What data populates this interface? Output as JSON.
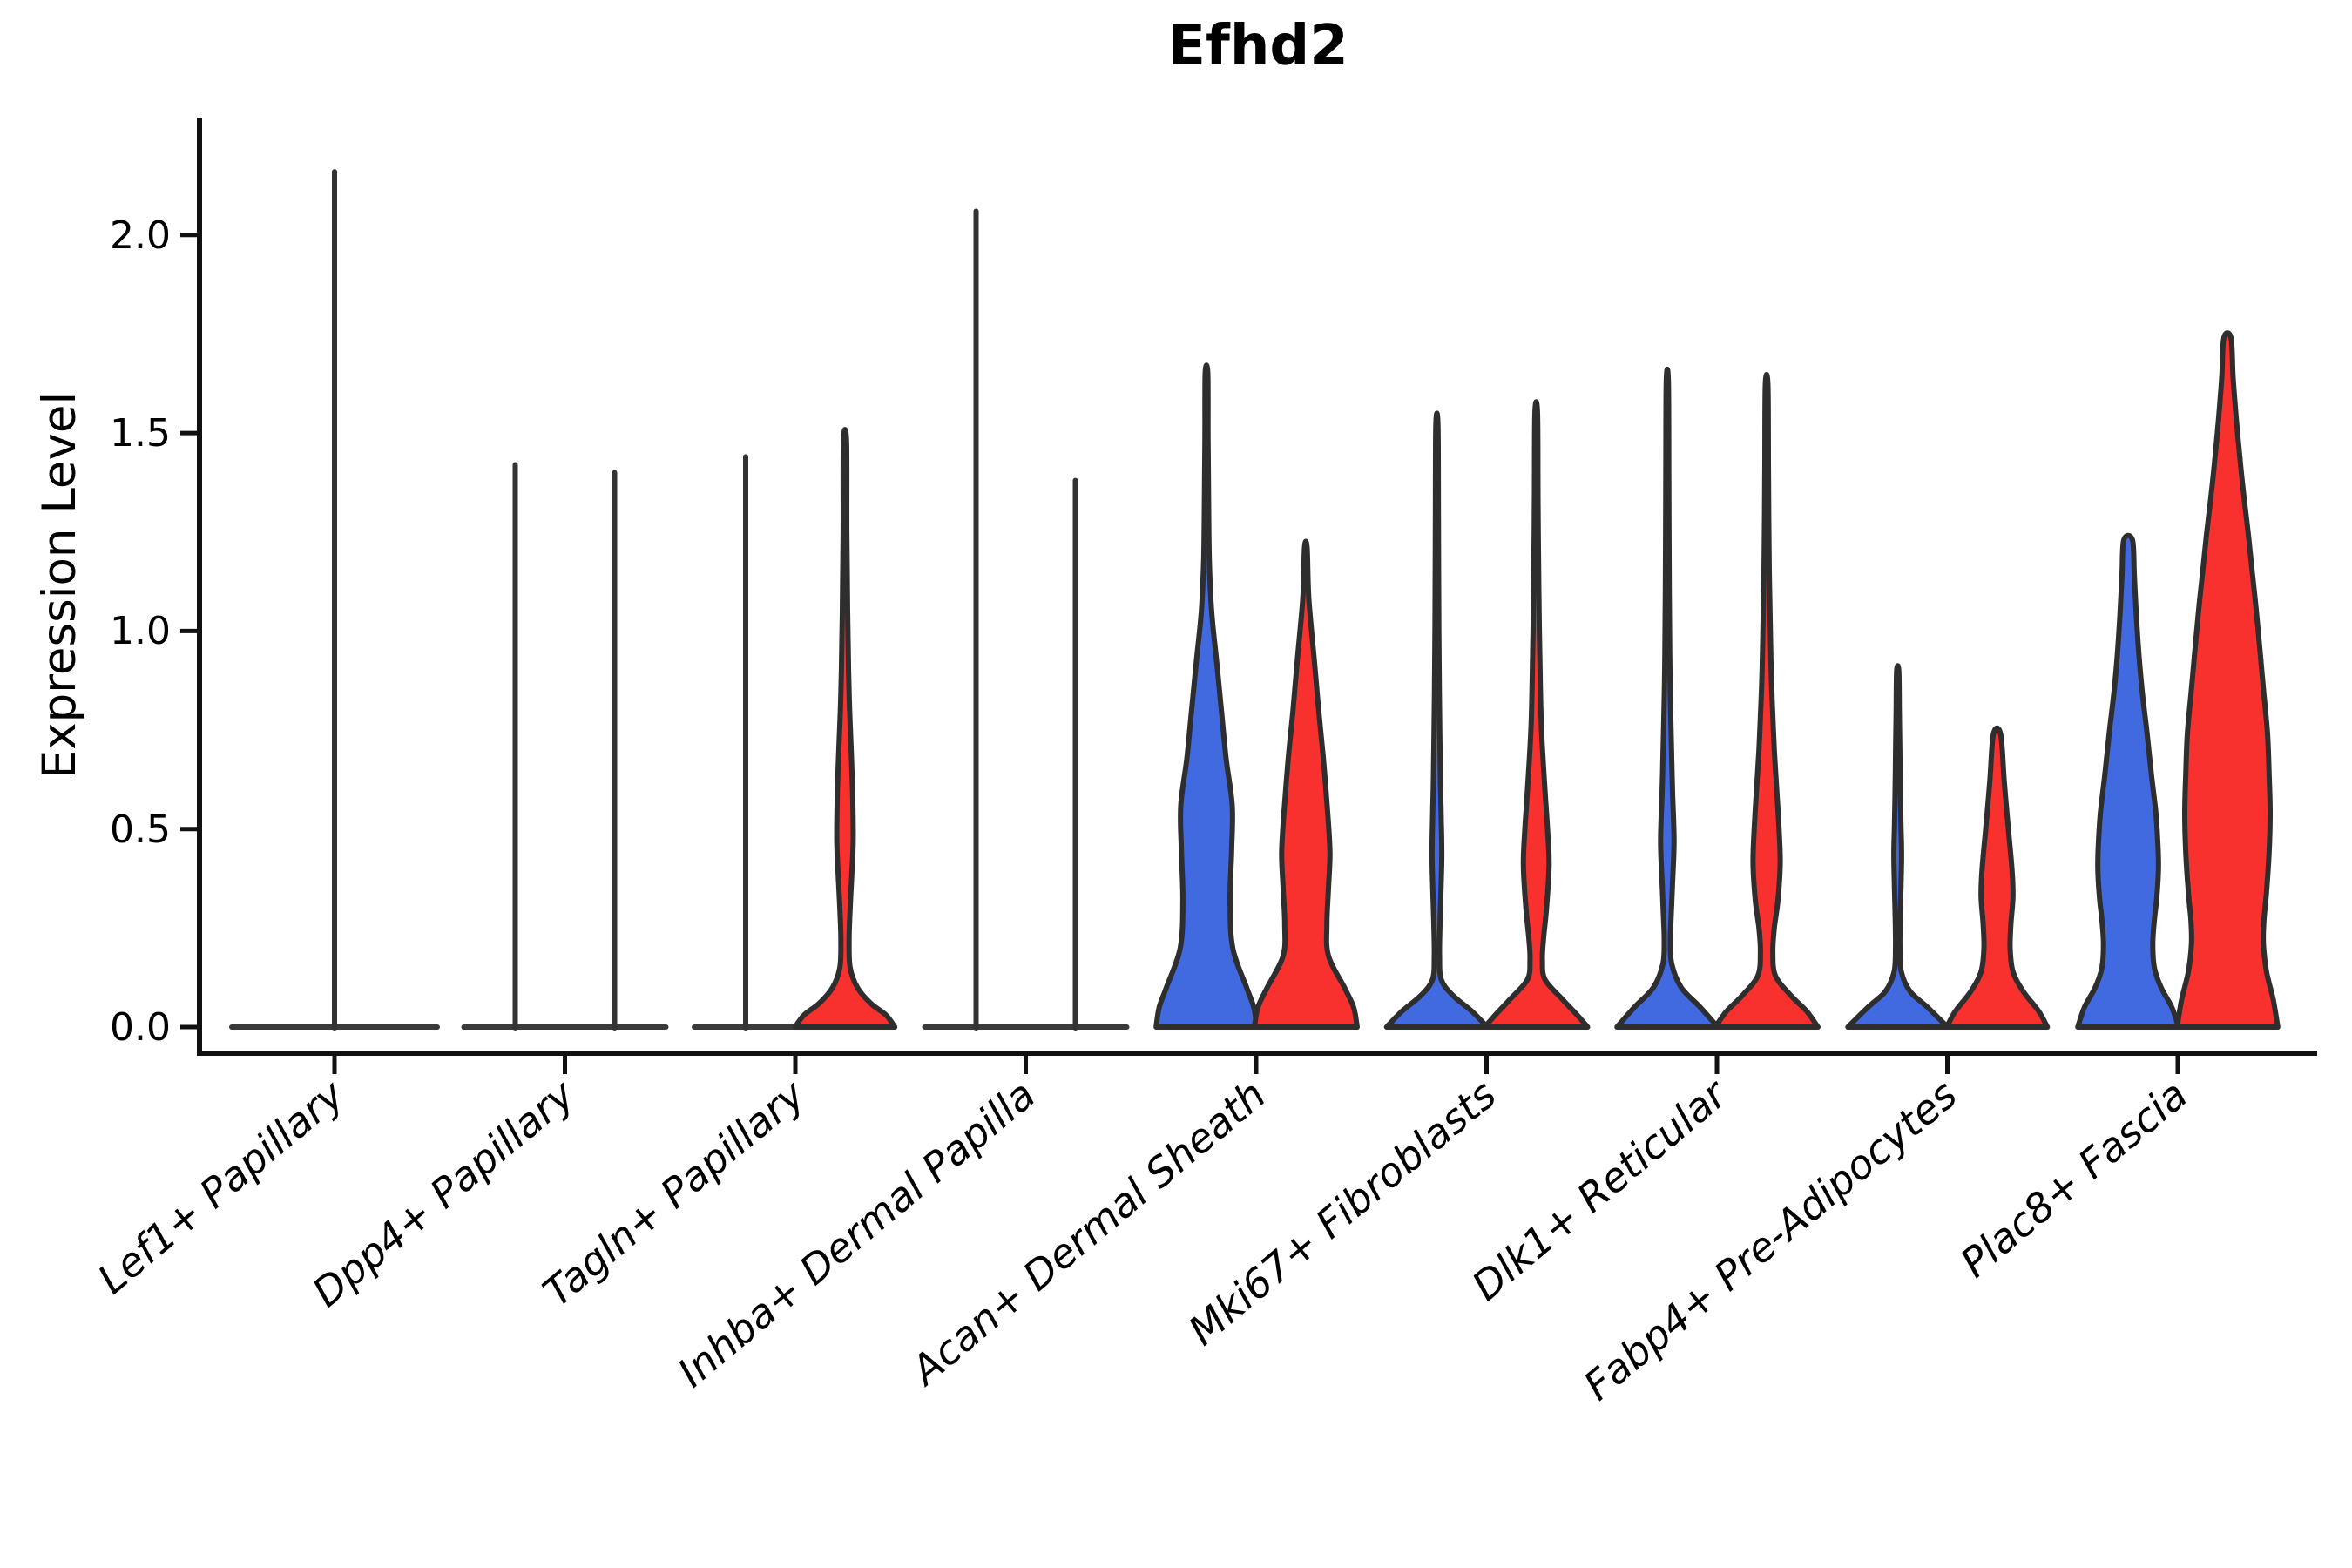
{
  "page": {
    "background": "#ffffff"
  },
  "chart_data": {
    "type": "violin",
    "title": "Efhd2",
    "ylabel": "Expression Level",
    "xlabel": "",
    "yticks": [
      "0.0",
      "0.5",
      "1.0",
      "1.5",
      "2.0"
    ],
    "ytick_values": [
      0.0,
      0.5,
      1.0,
      1.5,
      2.0
    ],
    "ylim": [
      -0.07,
      2.3
    ],
    "grid": false,
    "legend": "none",
    "colors": {
      "blue": "#4169e0",
      "red": "#f8312f",
      "outline": "#2e2e2e",
      "spike": "#333333",
      "axis": "#111111"
    },
    "categories": [
      "Lef1+ Papillary",
      "Dpp4+ Papillary",
      "Tagln+ Papillary",
      "Inhba+ Dermal Papilla",
      "Acan+ Dermal Sheath",
      "Mki67+ Fibroblasts",
      "Dlk1+ Reticular",
      "Fabp4+ Pre-Adipocytes",
      "Plac8+ Fascia"
    ],
    "category_slugs": [
      "lef1-papillary",
      "dpp4-papillary",
      "tagln-papillary",
      "inhba-dermal-papilla",
      "acan-dermal-sheath",
      "mki67-fibroblasts",
      "dlk1-reticular",
      "fabp4-pre-adipocytes",
      "plac8-fascia"
    ],
    "violins": [
      {
        "category": 0,
        "group": "single",
        "kind": "spike",
        "max": 2.16,
        "base_halfwidth_frac": 2.0
      },
      {
        "category": 1,
        "group": "blue",
        "kind": "spike",
        "max": 1.42,
        "base_halfwidth_frac": 1.0
      },
      {
        "category": 1,
        "group": "red",
        "kind": "spike",
        "max": 1.4,
        "base_halfwidth_frac": 1.0
      },
      {
        "category": 2,
        "group": "blue",
        "kind": "spike",
        "max": 1.44,
        "base_halfwidth_frac": 1.0
      },
      {
        "category": 2,
        "group": "red",
        "kind": "shaped",
        "max": 1.48,
        "profile": [
          [
            1.48,
            0.03
          ],
          [
            1.25,
            0.035
          ],
          [
            1.05,
            0.05
          ],
          [
            0.9,
            0.07
          ],
          [
            0.8,
            0.09
          ],
          [
            0.7,
            0.12
          ],
          [
            0.58,
            0.15
          ],
          [
            0.47,
            0.16
          ],
          [
            0.38,
            0.13
          ],
          [
            0.3,
            0.1
          ],
          [
            0.22,
            0.08
          ],
          [
            0.15,
            0.1
          ],
          [
            0.1,
            0.24
          ],
          [
            0.06,
            0.5
          ],
          [
            0.03,
            0.8
          ],
          [
            0.0,
            0.97
          ]
        ]
      },
      {
        "category": 3,
        "group": "blue",
        "kind": "spike",
        "max": 2.06,
        "base_halfwidth_frac": 1.0
      },
      {
        "category": 3,
        "group": "red",
        "kind": "spike",
        "max": 1.38,
        "base_halfwidth_frac": 1.0
      },
      {
        "category": 4,
        "group": "blue",
        "kind": "shaped",
        "max": 1.65,
        "profile": [
          [
            1.65,
            0.025
          ],
          [
            1.48,
            0.03
          ],
          [
            1.32,
            0.04
          ],
          [
            1.18,
            0.055
          ],
          [
            1.05,
            0.1
          ],
          [
            0.92,
            0.2
          ],
          [
            0.8,
            0.29
          ],
          [
            0.68,
            0.38
          ],
          [
            0.56,
            0.5
          ],
          [
            0.45,
            0.49
          ],
          [
            0.32,
            0.46
          ],
          [
            0.2,
            0.51
          ],
          [
            0.1,
            0.78
          ],
          [
            0.05,
            0.92
          ],
          [
            0.0,
            0.98
          ]
        ]
      },
      {
        "category": 4,
        "group": "red",
        "kind": "shaped",
        "max": 1.21,
        "profile": [
          [
            1.21,
            0.025
          ],
          [
            1.08,
            0.06
          ],
          [
            0.92,
            0.17
          ],
          [
            0.8,
            0.25
          ],
          [
            0.68,
            0.34
          ],
          [
            0.55,
            0.42
          ],
          [
            0.44,
            0.47
          ],
          [
            0.35,
            0.44
          ],
          [
            0.26,
            0.41
          ],
          [
            0.18,
            0.44
          ],
          [
            0.1,
            0.75
          ],
          [
            0.05,
            0.93
          ],
          [
            0.0,
            1.0
          ]
        ]
      },
      {
        "category": 5,
        "group": "blue",
        "kind": "shaped",
        "max": 1.52,
        "profile": [
          [
            1.52,
            0.02
          ],
          [
            1.28,
            0.028
          ],
          [
            1.0,
            0.038
          ],
          [
            0.8,
            0.05
          ],
          [
            0.61,
            0.07
          ],
          [
            0.52,
            0.085
          ],
          [
            0.43,
            0.095
          ],
          [
            0.34,
            0.078
          ],
          [
            0.26,
            0.06
          ],
          [
            0.18,
            0.05
          ],
          [
            0.12,
            0.085
          ],
          [
            0.08,
            0.31
          ],
          [
            0.04,
            0.68
          ],
          [
            0.0,
            0.98
          ]
        ]
      },
      {
        "category": 5,
        "group": "red",
        "kind": "shaped",
        "max": 1.55,
        "profile": [
          [
            1.55,
            0.025
          ],
          [
            1.32,
            0.035
          ],
          [
            1.1,
            0.05
          ],
          [
            0.94,
            0.07
          ],
          [
            0.76,
            0.1
          ],
          [
            0.6,
            0.17
          ],
          [
            0.5,
            0.22
          ],
          [
            0.41,
            0.25
          ],
          [
            0.3,
            0.2
          ],
          [
            0.22,
            0.14
          ],
          [
            0.17,
            0.12
          ],
          [
            0.12,
            0.17
          ],
          [
            0.07,
            0.51
          ],
          [
            0.03,
            0.8
          ],
          [
            0.0,
            1.0
          ]
        ]
      },
      {
        "category": 6,
        "group": "blue",
        "kind": "shaped",
        "max": 1.63,
        "profile": [
          [
            1.63,
            0.02
          ],
          [
            1.38,
            0.028
          ],
          [
            1.1,
            0.038
          ],
          [
            0.9,
            0.05
          ],
          [
            0.72,
            0.078
          ],
          [
            0.6,
            0.1
          ],
          [
            0.47,
            0.13
          ],
          [
            0.36,
            0.1
          ],
          [
            0.29,
            0.078
          ],
          [
            0.22,
            0.06
          ],
          [
            0.16,
            0.085
          ],
          [
            0.1,
            0.27
          ],
          [
            0.05,
            0.64
          ],
          [
            0.0,
            0.98
          ]
        ]
      },
      {
        "category": 6,
        "group": "red",
        "kind": "shaped",
        "max": 1.62,
        "profile": [
          [
            1.62,
            0.025
          ],
          [
            1.4,
            0.035
          ],
          [
            1.15,
            0.05
          ],
          [
            0.95,
            0.08
          ],
          [
            0.85,
            0.1
          ],
          [
            0.7,
            0.15
          ],
          [
            0.55,
            0.22
          ],
          [
            0.42,
            0.265
          ],
          [
            0.32,
            0.22
          ],
          [
            0.25,
            0.15
          ],
          [
            0.19,
            0.12
          ],
          [
            0.13,
            0.17
          ],
          [
            0.08,
            0.47
          ],
          [
            0.04,
            0.78
          ],
          [
            0.0,
            1.0
          ]
        ]
      },
      {
        "category": 7,
        "group": "blue",
        "kind": "shaped",
        "max": 0.9,
        "profile": [
          [
            0.9,
            0.02
          ],
          [
            0.8,
            0.03
          ],
          [
            0.7,
            0.04
          ],
          [
            0.58,
            0.052
          ],
          [
            0.5,
            0.065
          ],
          [
            0.43,
            0.075
          ],
          [
            0.35,
            0.062
          ],
          [
            0.27,
            0.048
          ],
          [
            0.2,
            0.042
          ],
          [
            0.14,
            0.07
          ],
          [
            0.09,
            0.24
          ],
          [
            0.05,
            0.58
          ],
          [
            0.0,
            0.97
          ]
        ]
      },
      {
        "category": 7,
        "group": "red",
        "kind": "shaped",
        "max": 0.74,
        "profile": [
          [
            0.74,
            0.07
          ],
          [
            0.62,
            0.14
          ],
          [
            0.5,
            0.22
          ],
          [
            0.4,
            0.29
          ],
          [
            0.33,
            0.31
          ],
          [
            0.26,
            0.27
          ],
          [
            0.2,
            0.255
          ],
          [
            0.14,
            0.31
          ],
          [
            0.09,
            0.51
          ],
          [
            0.04,
            0.81
          ],
          [
            0.0,
            0.98
          ]
        ]
      },
      {
        "category": 8,
        "group": "blue",
        "kind": "shaped",
        "max": 1.23,
        "profile": [
          [
            1.23,
            0.085
          ],
          [
            1.14,
            0.12
          ],
          [
            1.04,
            0.16
          ],
          [
            0.94,
            0.21
          ],
          [
            0.84,
            0.28
          ],
          [
            0.74,
            0.37
          ],
          [
            0.64,
            0.45
          ],
          [
            0.54,
            0.54
          ],
          [
            0.46,
            0.58
          ],
          [
            0.4,
            0.59
          ],
          [
            0.33,
            0.56
          ],
          [
            0.27,
            0.51
          ],
          [
            0.21,
            0.48
          ],
          [
            0.15,
            0.51
          ],
          [
            0.1,
            0.64
          ],
          [
            0.05,
            0.85
          ],
          [
            0.0,
            0.98
          ]
        ]
      },
      {
        "category": 8,
        "group": "red",
        "kind": "shaped",
        "max": 1.74,
        "profile": [
          [
            1.74,
            0.07
          ],
          [
            1.64,
            0.11
          ],
          [
            1.54,
            0.17
          ],
          [
            1.44,
            0.24
          ],
          [
            1.34,
            0.32
          ],
          [
            1.24,
            0.41
          ],
          [
            1.14,
            0.49
          ],
          [
            1.04,
            0.57
          ],
          [
            0.94,
            0.64
          ],
          [
            0.84,
            0.71
          ],
          [
            0.74,
            0.78
          ],
          [
            0.64,
            0.81
          ],
          [
            0.54,
            0.83
          ],
          [
            0.44,
            0.81
          ],
          [
            0.34,
            0.76
          ],
          [
            0.27,
            0.71
          ],
          [
            0.21,
            0.7
          ],
          [
            0.14,
            0.76
          ],
          [
            0.07,
            0.89
          ],
          [
            0.0,
            0.98
          ]
        ]
      }
    ]
  }
}
